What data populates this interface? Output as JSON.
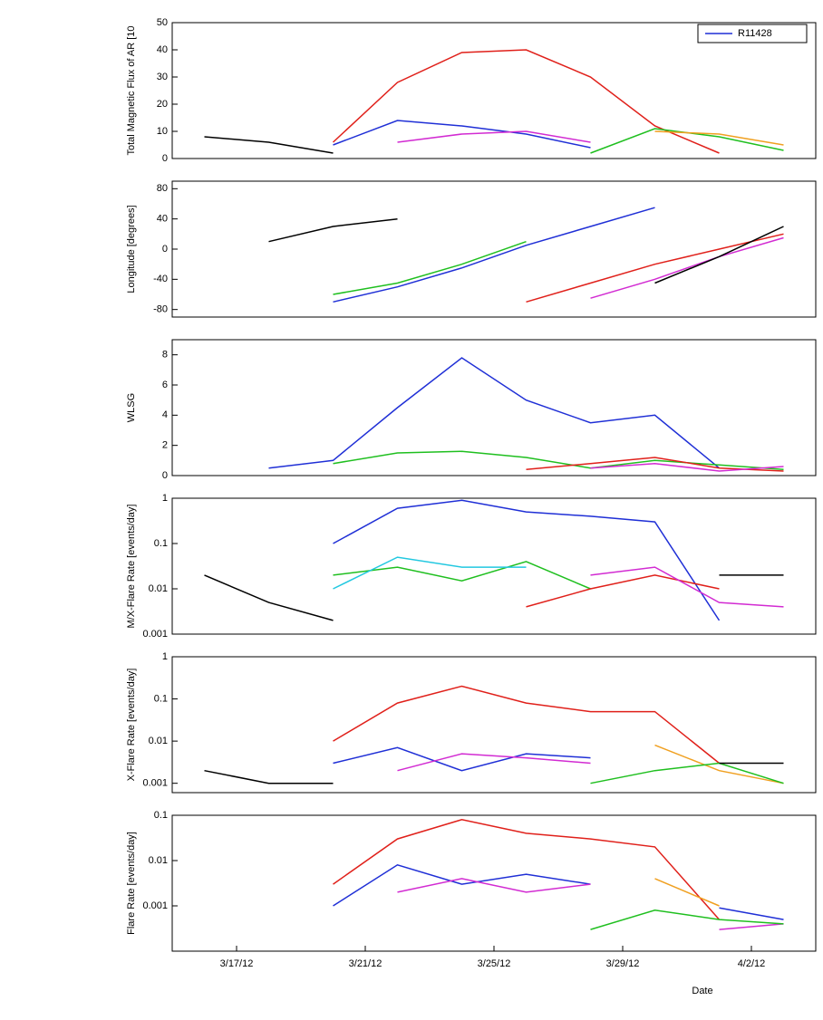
{
  "chart_data": [
    {
      "type": "line",
      "ylabel": "Total Magnetic Flux of AR [10",
      "legend": "upper right",
      "x": [
        16,
        18,
        20,
        22,
        24,
        26,
        28,
        30,
        32,
        34
      ],
      "xlim": [
        15,
        35
      ],
      "ylim": [
        0,
        50
      ],
      "yticks": [
        0,
        10,
        20,
        30,
        40,
        50
      ],
      "series": [
        {
          "name": "R11428",
          "color": "#1f2fd6",
          "values": [
            null,
            null,
            5,
            14,
            12,
            9,
            4,
            null,
            null,
            null
          ]
        },
        {
          "color": "#e0201a",
          "values": [
            null,
            null,
            6,
            28,
            39,
            40,
            30,
            12,
            2,
            null
          ]
        },
        {
          "color": "#d22bd2",
          "values": [
            null,
            null,
            null,
            6,
            9,
            10,
            6,
            null,
            null,
            null
          ]
        },
        {
          "color": "#1fbf1f",
          "values": [
            null,
            null,
            null,
            null,
            null,
            null,
            2,
            11,
            8,
            3
          ]
        },
        {
          "color": "#f0a020",
          "values": [
            null,
            null,
            null,
            null,
            null,
            null,
            null,
            10,
            9,
            5
          ]
        },
        {
          "color": "#000000",
          "values": [
            8,
            6,
            2,
            null,
            null,
            null,
            null,
            null,
            null,
            null
          ]
        }
      ]
    },
    {
      "type": "line",
      "ylabel": "Longitude [degrees]",
      "x": [
        16,
        18,
        20,
        22,
        24,
        26,
        28,
        30,
        32,
        34
      ],
      "xlim": [
        15,
        35
      ],
      "ylim": [
        -90,
        90
      ],
      "yticks": [
        -80,
        -40,
        0,
        40,
        80
      ],
      "series": [
        {
          "color": "#1f2fd6",
          "values": [
            null,
            null,
            -70,
            -50,
            -25,
            5,
            30,
            55,
            null,
            null
          ]
        },
        {
          "color": "#1fbf1f",
          "values": [
            null,
            null,
            -60,
            -45,
            -20,
            10,
            null,
            null,
            null,
            null
          ]
        },
        {
          "color": "#e0201a",
          "values": [
            null,
            null,
            null,
            null,
            null,
            -70,
            -45,
            -20,
            0,
            20
          ]
        },
        {
          "color": "#d22bd2",
          "values": [
            null,
            null,
            null,
            null,
            null,
            null,
            -65,
            -40,
            -10,
            15
          ]
        },
        {
          "color": "#000000",
          "values": [
            null,
            10,
            30,
            40,
            null,
            null,
            null,
            -45,
            -10,
            30
          ]
        }
      ]
    },
    {
      "type": "line",
      "ylabel": "WLSG",
      "x": [
        16,
        18,
        20,
        22,
        24,
        26,
        28,
        30,
        32,
        34
      ],
      "xlim": [
        15,
        35
      ],
      "ylim": [
        0,
        9
      ],
      "yticks": [
        0,
        2,
        4,
        6,
        8
      ],
      "series": [
        {
          "color": "#1f2fd6",
          "values": [
            null,
            0.5,
            1,
            4.5,
            7.8,
            5,
            3.5,
            4,
            0.5,
            null
          ]
        },
        {
          "color": "#1fbf1f",
          "values": [
            null,
            null,
            0.8,
            1.5,
            1.6,
            1.2,
            0.5,
            1,
            0.7,
            0.4
          ]
        },
        {
          "color": "#e0201a",
          "values": [
            null,
            null,
            null,
            null,
            null,
            0.4,
            0.8,
            1.2,
            0.5,
            0.3
          ]
        },
        {
          "color": "#d22bd2",
          "values": [
            null,
            null,
            null,
            null,
            null,
            null,
            0.5,
            0.8,
            0.3,
            0.6
          ]
        }
      ]
    },
    {
      "type": "line",
      "ylabel": "M/X-Flare Rate [events/day]",
      "log": true,
      "x": [
        16,
        18,
        20,
        22,
        24,
        26,
        28,
        30,
        32,
        34
      ],
      "xlim": [
        15,
        35
      ],
      "ylim": [
        0.001,
        1
      ],
      "yticks": [
        0.001,
        0.01,
        0.1,
        1
      ],
      "series": [
        {
          "color": "#1f2fd6",
          "values": [
            null,
            null,
            0.1,
            0.6,
            0.9,
            0.5,
            0.4,
            0.3,
            0.002,
            null
          ]
        },
        {
          "color": "#1fbf1f",
          "values": [
            null,
            null,
            0.02,
            0.03,
            0.015,
            0.04,
            0.01,
            null,
            null,
            null
          ]
        },
        {
          "color": "#22c8e0",
          "values": [
            null,
            null,
            0.01,
            0.05,
            0.03,
            0.03,
            null,
            null,
            null,
            null
          ]
        },
        {
          "color": "#e0201a",
          "values": [
            null,
            null,
            null,
            null,
            null,
            0.004,
            0.01,
            0.02,
            0.01,
            null
          ]
        },
        {
          "color": "#d22bd2",
          "values": [
            null,
            null,
            null,
            null,
            null,
            null,
            0.02,
            0.03,
            0.005,
            0.004
          ]
        },
        {
          "color": "#000000",
          "values": [
            0.02,
            0.005,
            0.002,
            null,
            null,
            null,
            null,
            null,
            0.02,
            0.02
          ]
        }
      ]
    },
    {
      "type": "line",
      "ylabel": "X-Flare Rate [events/day]",
      "log": true,
      "x": [
        16,
        18,
        20,
        22,
        24,
        26,
        28,
        30,
        32,
        34
      ],
      "xlim": [
        15,
        35
      ],
      "ylim": [
        0.0006,
        1
      ],
      "yticks": [
        0.001,
        0.01,
        0.1,
        1
      ],
      "series": [
        {
          "color": "#e0201a",
          "values": [
            null,
            null,
            0.01,
            0.08,
            0.2,
            0.08,
            0.05,
            0.05,
            0.003,
            null
          ]
        },
        {
          "color": "#1f2fd6",
          "values": [
            null,
            null,
            0.003,
            0.007,
            0.002,
            0.005,
            0.004,
            null,
            null,
            null
          ]
        },
        {
          "color": "#d22bd2",
          "values": [
            null,
            null,
            null,
            0.002,
            0.005,
            0.004,
            0.003,
            null,
            null,
            null
          ]
        },
        {
          "color": "#f0a020",
          "values": [
            null,
            null,
            null,
            null,
            null,
            null,
            null,
            0.008,
            0.002,
            0.001
          ]
        },
        {
          "color": "#1fbf1f",
          "values": [
            null,
            null,
            null,
            null,
            null,
            null,
            0.001,
            0.002,
            0.003,
            0.001
          ]
        },
        {
          "color": "#000000",
          "values": [
            0.002,
            0.001,
            0.001,
            null,
            null,
            null,
            null,
            null,
            0.003,
            0.003
          ]
        }
      ]
    },
    {
      "type": "line",
      "ylabel": "Flare Rate [events/day]",
      "log": true,
      "xlabel": "Date",
      "x": [
        16,
        18,
        20,
        22,
        24,
        26,
        28,
        30,
        32,
        34
      ],
      "xlim": [
        15,
        35
      ],
      "ylim": [
        0.0001,
        0.1
      ],
      "yticks": [
        0.001,
        0.01,
        0.1
      ],
      "xticks": [
        {
          "value": 17,
          "label": "3/17/12"
        },
        {
          "value": 21,
          "label": "3/21/12"
        },
        {
          "value": 25,
          "label": "3/25/12"
        },
        {
          "value": 29,
          "label": "3/29/12"
        },
        {
          "value": 33,
          "label": "4/2/12"
        }
      ],
      "series": [
        {
          "color": "#e0201a",
          "values": [
            null,
            null,
            0.003,
            0.03,
            0.08,
            0.04,
            0.03,
            0.02,
            0.0005,
            null
          ]
        },
        {
          "color": "#1f2fd6",
          "values": [
            null,
            null,
            0.001,
            0.008,
            0.003,
            0.005,
            0.003,
            null,
            0.0009,
            0.0005
          ]
        },
        {
          "color": "#d22bd2",
          "values": [
            null,
            null,
            null,
            0.002,
            0.004,
            0.002,
            0.003,
            null,
            0.0003,
            0.0004
          ]
        },
        {
          "color": "#f0a020",
          "values": [
            null,
            null,
            null,
            null,
            null,
            null,
            null,
            0.004,
            0.001,
            null
          ]
        },
        {
          "color": "#1fbf1f",
          "values": [
            null,
            null,
            null,
            null,
            null,
            null,
            0.0003,
            0.0008,
            0.0005,
            0.0004
          ]
        }
      ]
    }
  ]
}
